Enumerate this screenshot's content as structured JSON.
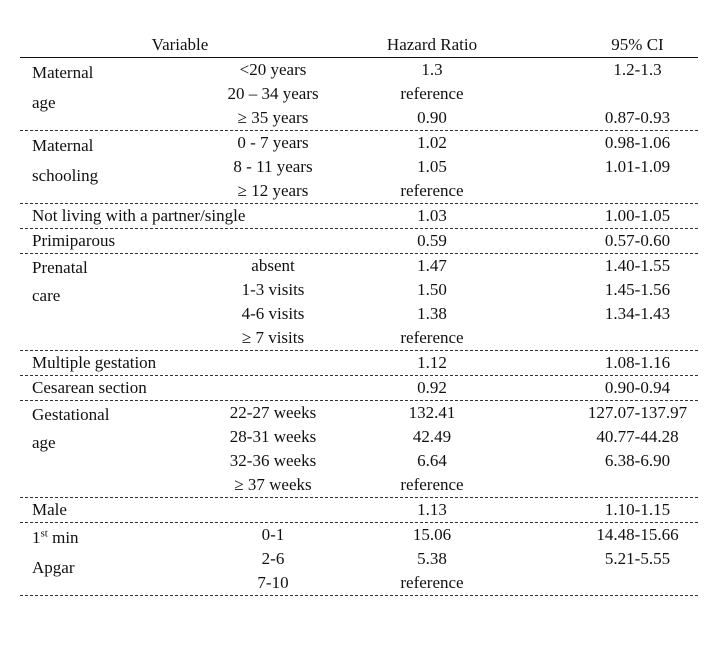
{
  "header": {
    "variable": "Variable",
    "hazard_ratio": "Hazard Ratio",
    "ci": "95% CI"
  },
  "groups": [
    {
      "label": [
        "Maternal",
        "age"
      ],
      "rows": [
        {
          "sub": "<20 years",
          "hr": "1.3",
          "ci": "1.2-1.3"
        },
        {
          "sub": "20 – 34 years",
          "hr": "reference",
          "ci": ""
        },
        {
          "sub": "≥ 35 years",
          "hr": "0.90",
          "ci": "0.87-0.93"
        }
      ]
    },
    {
      "label": [
        "Maternal",
        "schooling"
      ],
      "rows": [
        {
          "sub": "0 - 7 years",
          "hr": "1.02",
          "ci": "0.98-1.06"
        },
        {
          "sub": "8 - 11 years",
          "hr": "1.05",
          "ci": "1.01-1.09"
        },
        {
          "sub": "≥ 12 years",
          "hr": "reference",
          "ci": ""
        }
      ]
    },
    {
      "label": [
        "Not living with a partner/single"
      ],
      "rows": [
        {
          "sub": "",
          "hr": "1.03",
          "ci": "1.00-1.05"
        }
      ]
    },
    {
      "label": [
        "Primiparous"
      ],
      "rows": [
        {
          "sub": "",
          "hr": "0.59",
          "ci": "0.57-0.60"
        }
      ]
    },
    {
      "label": [
        "Prenatal",
        "care"
      ],
      "rows": [
        {
          "sub": "absent",
          "hr": "1.47",
          "ci": "1.40-1.55"
        },
        {
          "sub": "1-3 visits",
          "hr": "1.50",
          "ci": "1.45-1.56"
        },
        {
          "sub": "4-6 visits",
          "hr": "1.38",
          "ci": "1.34-1.43"
        },
        {
          "sub": "≥ 7 visits",
          "hr": "reference",
          "ci": ""
        }
      ]
    },
    {
      "label": [
        "Multiple gestation"
      ],
      "rows": [
        {
          "sub": "",
          "hr": "1.12",
          "ci": "1.08-1.16"
        }
      ]
    },
    {
      "label": [
        "Cesarean section"
      ],
      "rows": [
        {
          "sub": "",
          "hr": "0.92",
          "ci": "0.90-0.94"
        }
      ]
    },
    {
      "label": [
        "Gestational",
        "age"
      ],
      "rows": [
        {
          "sub": "22-27 weeks",
          "hr": "132.41",
          "ci": "127.07-137.97"
        },
        {
          "sub": "28-31 weeks",
          "hr": "42.49",
          "ci": "40.77-44.28"
        },
        {
          "sub": "32-36 weeks",
          "hr": "6.64",
          "ci": "6.38-6.90"
        },
        {
          "sub": "≥ 37 weeks",
          "hr": "reference",
          "ci": ""
        }
      ]
    },
    {
      "label": [
        "Male"
      ],
      "rows": [
        {
          "sub": "",
          "hr": "1.13",
          "ci": "1.10-1.15"
        }
      ]
    },
    {
      "label": [
        "1st min",
        "Apgar"
      ],
      "label_sup_pos": 1,
      "rows": [
        {
          "sub": "0-1",
          "hr": "15.06",
          "ci": "14.48-15.66"
        },
        {
          "sub": "2-6",
          "hr": "5.38",
          "ci": "5.21-5.55"
        },
        {
          "sub": "7-10",
          "hr": "reference",
          "ci": ""
        }
      ]
    }
  ]
}
